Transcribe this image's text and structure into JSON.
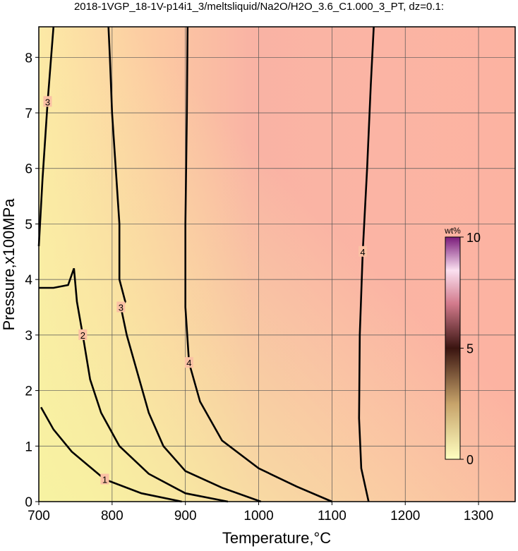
{
  "chart_data": {
    "type": "contour",
    "title": "2018-1VGP_18-1V-p14i1_3/meltsliquid/Na2O/H2O_3.6_C1.000_3_PT, dz=0.1:",
    "x_label": "Temperature,°C",
    "y_label": "Pressure,x100MPa",
    "xlim": [
      700,
      1350
    ],
    "ylim": [
      0,
      8.55
    ],
    "xticks": [
      700,
      800,
      900,
      1000,
      1100,
      1200,
      1300
    ],
    "yticks": [
      0,
      1,
      2,
      3,
      4,
      5,
      6,
      7,
      8
    ],
    "grid": true,
    "colorbar": {
      "label": "wt%",
      "clim": [
        0,
        10
      ],
      "ticks": [
        0,
        5,
        10
      ]
    },
    "contours": [
      {
        "level": 1,
        "x": [
          703,
          720,
          745,
          790,
          840,
          895
        ],
        "y": [
          1.7,
          1.3,
          0.9,
          0.4,
          0.15,
          0
        ]
      },
      {
        "level": 2,
        "x": [
          958,
          900,
          850,
          810,
          785,
          770,
          760,
          752,
          748,
          740,
          720,
          700
        ],
        "y": [
          0,
          0.15,
          0.5,
          1.0,
          1.6,
          2.2,
          3.0,
          3.6,
          4.2,
          3.9,
          3.85,
          3.85
        ]
      },
      {
        "level": 3,
        "x": [
          1003,
          950,
          900,
          870,
          850,
          835,
          820,
          812,
          818,
          810,
          810,
          805,
          800,
          797,
          795
        ],
        "y": [
          0,
          0.25,
          0.55,
          1.0,
          1.6,
          2.3,
          3.0,
          3.5,
          3.6,
          4.0,
          5.0,
          6.0,
          7.0,
          8.0,
          8.55
        ]
      },
      {
        "level": 3,
        "x": [
          700,
          705,
          712,
          720
        ],
        "y": [
          4.6,
          5.8,
          7.2,
          8.55
        ]
      },
      {
        "level": 4,
        "x": [
          1100,
          1052,
          1000,
          950,
          920,
          905,
          900,
          900,
          902,
          903
        ],
        "y": [
          0,
          0.27,
          0.6,
          1.1,
          1.8,
          2.5,
          3.5,
          5.0,
          7.0,
          8.55
        ]
      },
      {
        "level": 4,
        "x": [
          1150,
          1140,
          1137,
          1138,
          1142,
          1148,
          1153,
          1157
        ],
        "y": [
          0,
          0.6,
          1.5,
          3.0,
          4.5,
          6.0,
          7.5,
          8.55
        ]
      }
    ]
  }
}
